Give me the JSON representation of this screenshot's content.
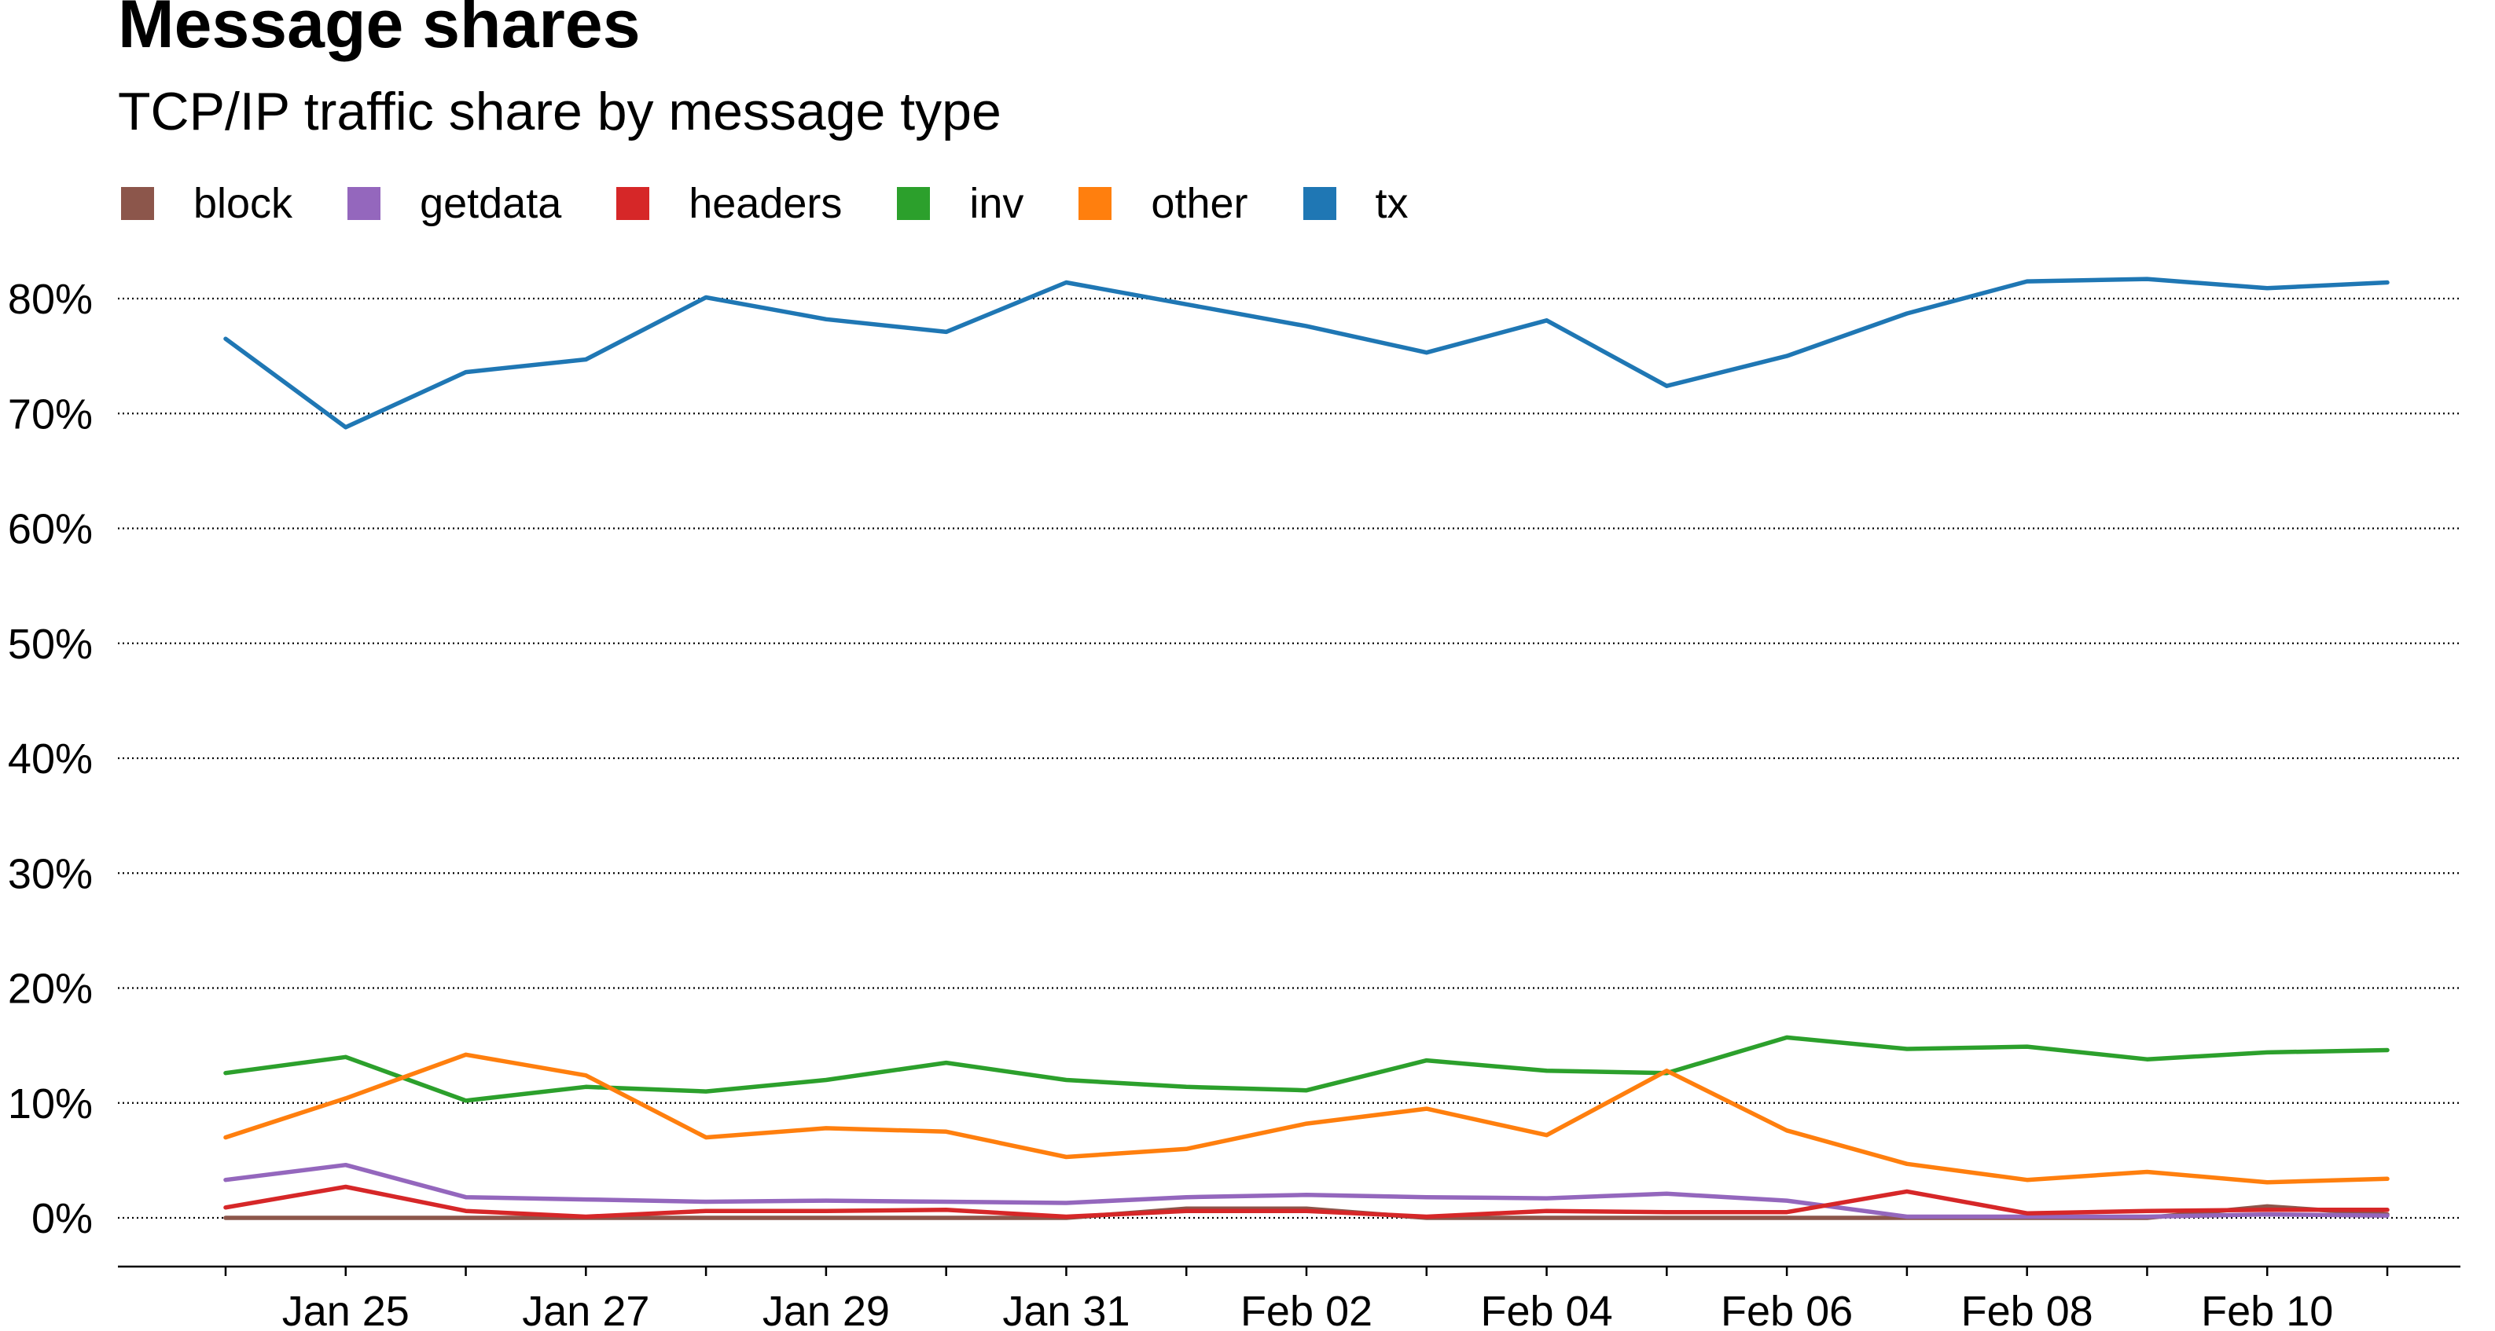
{
  "chart_data": {
    "type": "line",
    "title": "Message shares",
    "subtitle": "TCP/IP traffic share by message type",
    "xlabel": "",
    "ylabel": "",
    "x": [
      "2024-01-24",
      "2024-01-25",
      "2024-01-26",
      "2024-01-27",
      "2024-01-28",
      "2024-01-29",
      "2024-01-30",
      "2024-01-31",
      "2024-02-01",
      "2024-02-02",
      "2024-02-03",
      "2024-02-04",
      "2024-02-05",
      "2024-02-06",
      "2024-02-07",
      "2024-02-08",
      "2024-02-09",
      "2024-02-10",
      "2024-02-11"
    ],
    "x_tick_values": [
      "2024-01-25",
      "2024-01-27",
      "2024-01-29",
      "2024-01-31",
      "2024-02-02",
      "2024-02-04",
      "2024-02-06",
      "2024-02-08",
      "2024-02-10"
    ],
    "x_tick_labels": [
      "Jan 25",
      "Jan 27",
      "Jan 29",
      "Jan 31",
      "Feb 02",
      "Feb 04",
      "Feb 06",
      "Feb 08",
      "Feb 10"
    ],
    "y_ticks": [
      0,
      10,
      20,
      30,
      40,
      50,
      60,
      70,
      80
    ],
    "y_tick_labels": [
      "0%",
      "10%",
      "20%",
      "30%",
      "40%",
      "50%",
      "60%",
      "70%",
      "80%"
    ],
    "ylim": [
      -2,
      88
    ],
    "grid": "horizontal dotted",
    "legend_position": "top-left",
    "series": [
      {
        "name": "block",
        "color": "#8c564b",
        "values": [
          0,
          0,
          0,
          0,
          0,
          0,
          0,
          0,
          0.8,
          0.8,
          0,
          0,
          0,
          0,
          0,
          0,
          0,
          1.0,
          0.3
        ]
      },
      {
        "name": "getdata",
        "color": "#9467bd",
        "values": [
          3.3,
          4.6,
          1.8,
          1.6,
          1.4,
          1.5,
          1.4,
          1.3,
          1.8,
          2.0,
          1.8,
          1.7,
          2.1,
          1.5,
          0.1,
          0.1,
          0.1,
          0.3,
          0.2
        ]
      },
      {
        "name": "headers",
        "color": "#d62728",
        "values": [
          0.9,
          2.7,
          0.6,
          0.1,
          0.6,
          0.6,
          0.7,
          0.1,
          0.6,
          0.6,
          0.1,
          0.6,
          0.5,
          0.5,
          2.3,
          0.4,
          0.6,
          0.7,
          0.7
        ]
      },
      {
        "name": "inv",
        "color": "#2ca02c",
        "values": [
          12.6,
          14.0,
          10.2,
          11.4,
          11.0,
          12.0,
          13.5,
          12.0,
          11.4,
          11.1,
          13.7,
          12.8,
          12.6,
          15.7,
          14.7,
          14.9,
          13.8,
          14.4,
          14.6
        ]
      },
      {
        "name": "other",
        "color": "#ff7f0e",
        "values": [
          7.0,
          10.4,
          14.2,
          12.4,
          7.0,
          7.8,
          7.5,
          5.3,
          6.0,
          8.2,
          9.5,
          7.2,
          12.8,
          7.6,
          4.7,
          3.3,
          4.0,
          3.1,
          3.4
        ]
      },
      {
        "name": "tx",
        "color": "#1f77b4",
        "values": [
          76.5,
          68.8,
          73.6,
          74.7,
          80.1,
          78.2,
          77.1,
          81.4,
          79.5,
          77.6,
          75.3,
          78.1,
          72.4,
          75.0,
          78.7,
          81.5,
          81.7,
          80.9,
          81.4
        ]
      }
    ]
  }
}
